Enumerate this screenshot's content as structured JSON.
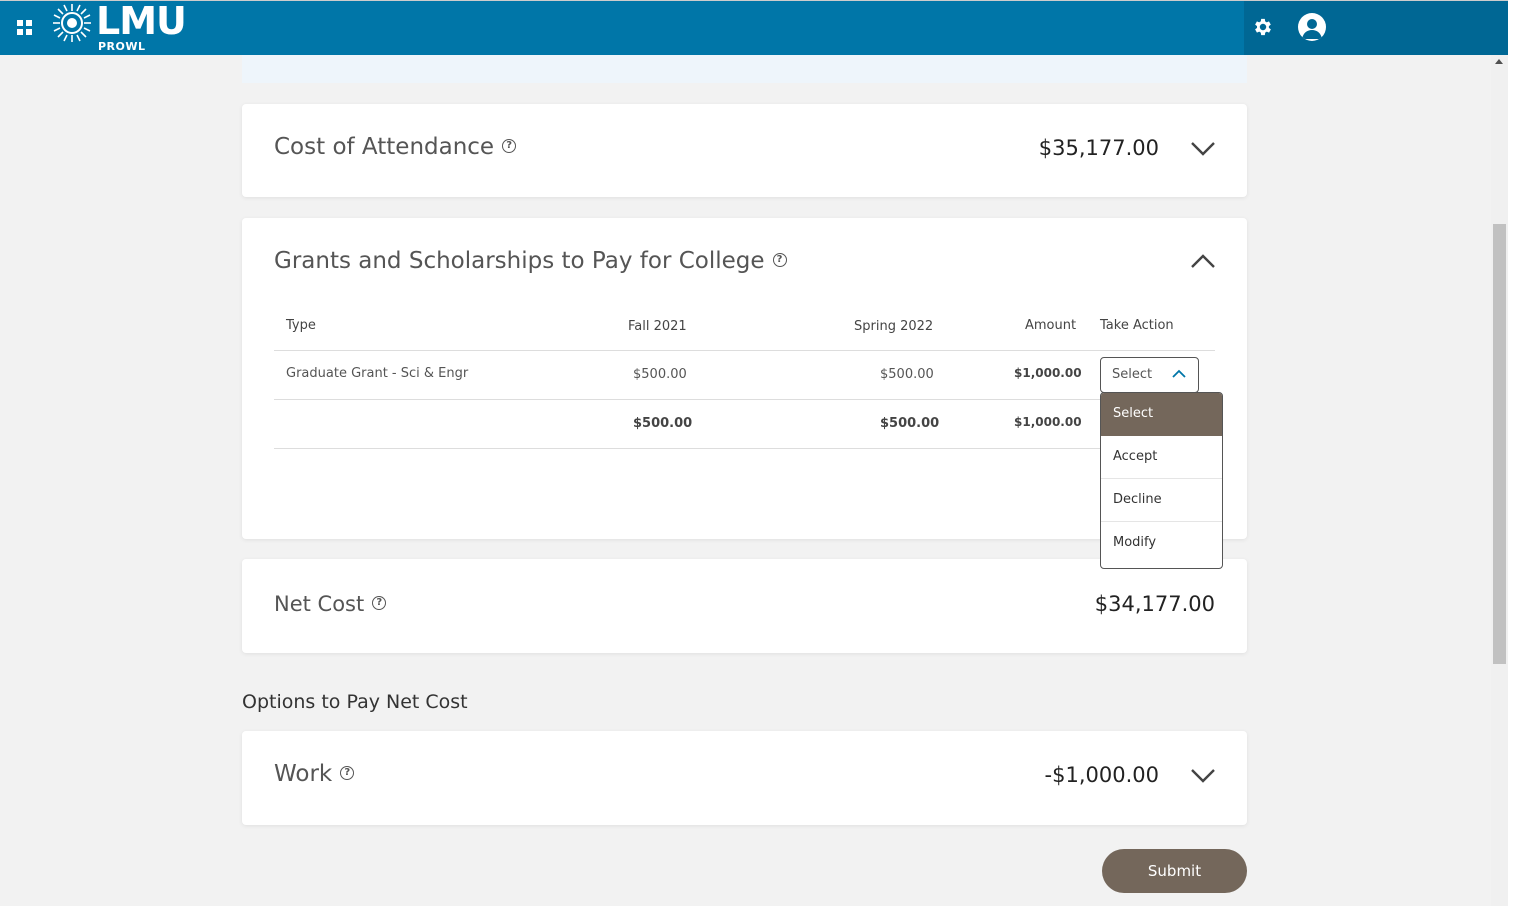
{
  "header": {
    "logo_text": "LMU",
    "logo_subtext": "PROWL",
    "icons": [
      "apps-grid-icon",
      "sun-logo-icon",
      "gear-icon",
      "user-icon"
    ]
  },
  "cost_of_attendance": {
    "title": "Cost of Attendance",
    "amount": "$35,177.00"
  },
  "grants": {
    "title": "Grants and Scholarships to Pay for College",
    "columns": {
      "type": "Type",
      "fall": "Fall 2021",
      "spring": "Spring 2022",
      "amount": "Amount",
      "action": "Take Action"
    },
    "rows": [
      {
        "type": "Graduate Grant - Sci & Engr",
        "fall": "$500.00",
        "spring": "$500.00",
        "amount": "$1,000.00",
        "action": "Select"
      }
    ],
    "totals": {
      "fall": "$500.00",
      "spring": "$500.00",
      "amount": "$1,000.00"
    },
    "dropdown_options": [
      "Select",
      "Accept",
      "Decline",
      "Modify"
    ]
  },
  "net_cost": {
    "title": "Net Cost",
    "amount": "$34,177.00"
  },
  "options_heading": "Options to Pay Net Cost",
  "work": {
    "title": "Work",
    "amount": "-$1,000.00"
  },
  "submit_label": "Submit",
  "colors": {
    "header_blue": "#0076a8",
    "accent_brown": "#74675b"
  }
}
